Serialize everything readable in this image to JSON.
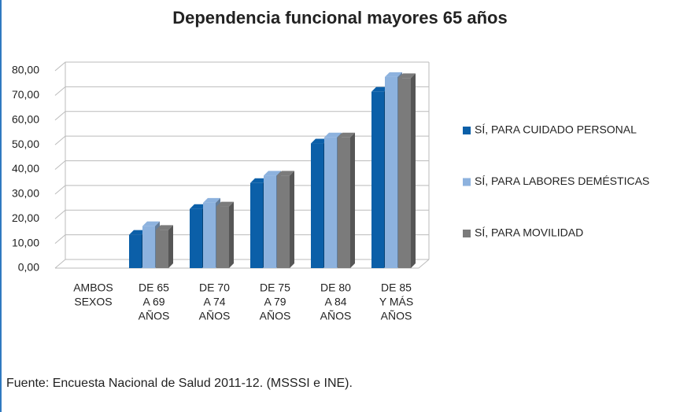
{
  "chart_data": {
    "type": "bar",
    "title": "Dependencia funcional mayores 65 años",
    "categories": [
      [
        "AMBOS",
        "SEXOS"
      ],
      [
        "DE 65",
        "A 69",
        "AÑOS"
      ],
      [
        "DE 70",
        "A 74",
        "AÑOS"
      ],
      [
        "DE 75",
        "A 79",
        "AÑOS"
      ],
      [
        "DE 80",
        "A 84",
        "AÑOS"
      ],
      [
        "DE 85",
        "Y MÁS",
        "AÑOS"
      ]
    ],
    "series": [
      {
        "name": "SÍ, PARA CUIDADO PERSONAL",
        "color": "#0b5fa8",
        "values": [
          null,
          13.5,
          24,
          34.5,
          50.5,
          71.5
        ]
      },
      {
        "name": "SÍ, PARA LABORES DEMÉSTICAS",
        "color": "#8db2de",
        "values": [
          null,
          17,
          26.5,
          37.5,
          53,
          77.5
        ]
      },
      {
        "name": "SÍ, PARA MOVILIDAD",
        "color": "#7b7b7b",
        "values": [
          null,
          15.5,
          25,
          37.5,
          53,
          77
        ]
      }
    ],
    "ylim": [
      0,
      80
    ],
    "yticks": [
      {
        "value": 0,
        "label": "0,00"
      },
      {
        "value": 10,
        "label": "10,00"
      },
      {
        "value": 20,
        "label": "20,00"
      },
      {
        "value": 30,
        "label": "30,00"
      },
      {
        "value": 40,
        "label": "40,00"
      },
      {
        "value": 50,
        "label": "50,00"
      },
      {
        "value": 60,
        "label": "60,00"
      },
      {
        "value": 70,
        "label": "70,00"
      },
      {
        "value": 80,
        "label": "80,00"
      }
    ],
    "grid": true,
    "legend": "right",
    "source": "Fuente: Encuesta Nacional de Salud 2011-12. (MSSSI e INE)."
  }
}
